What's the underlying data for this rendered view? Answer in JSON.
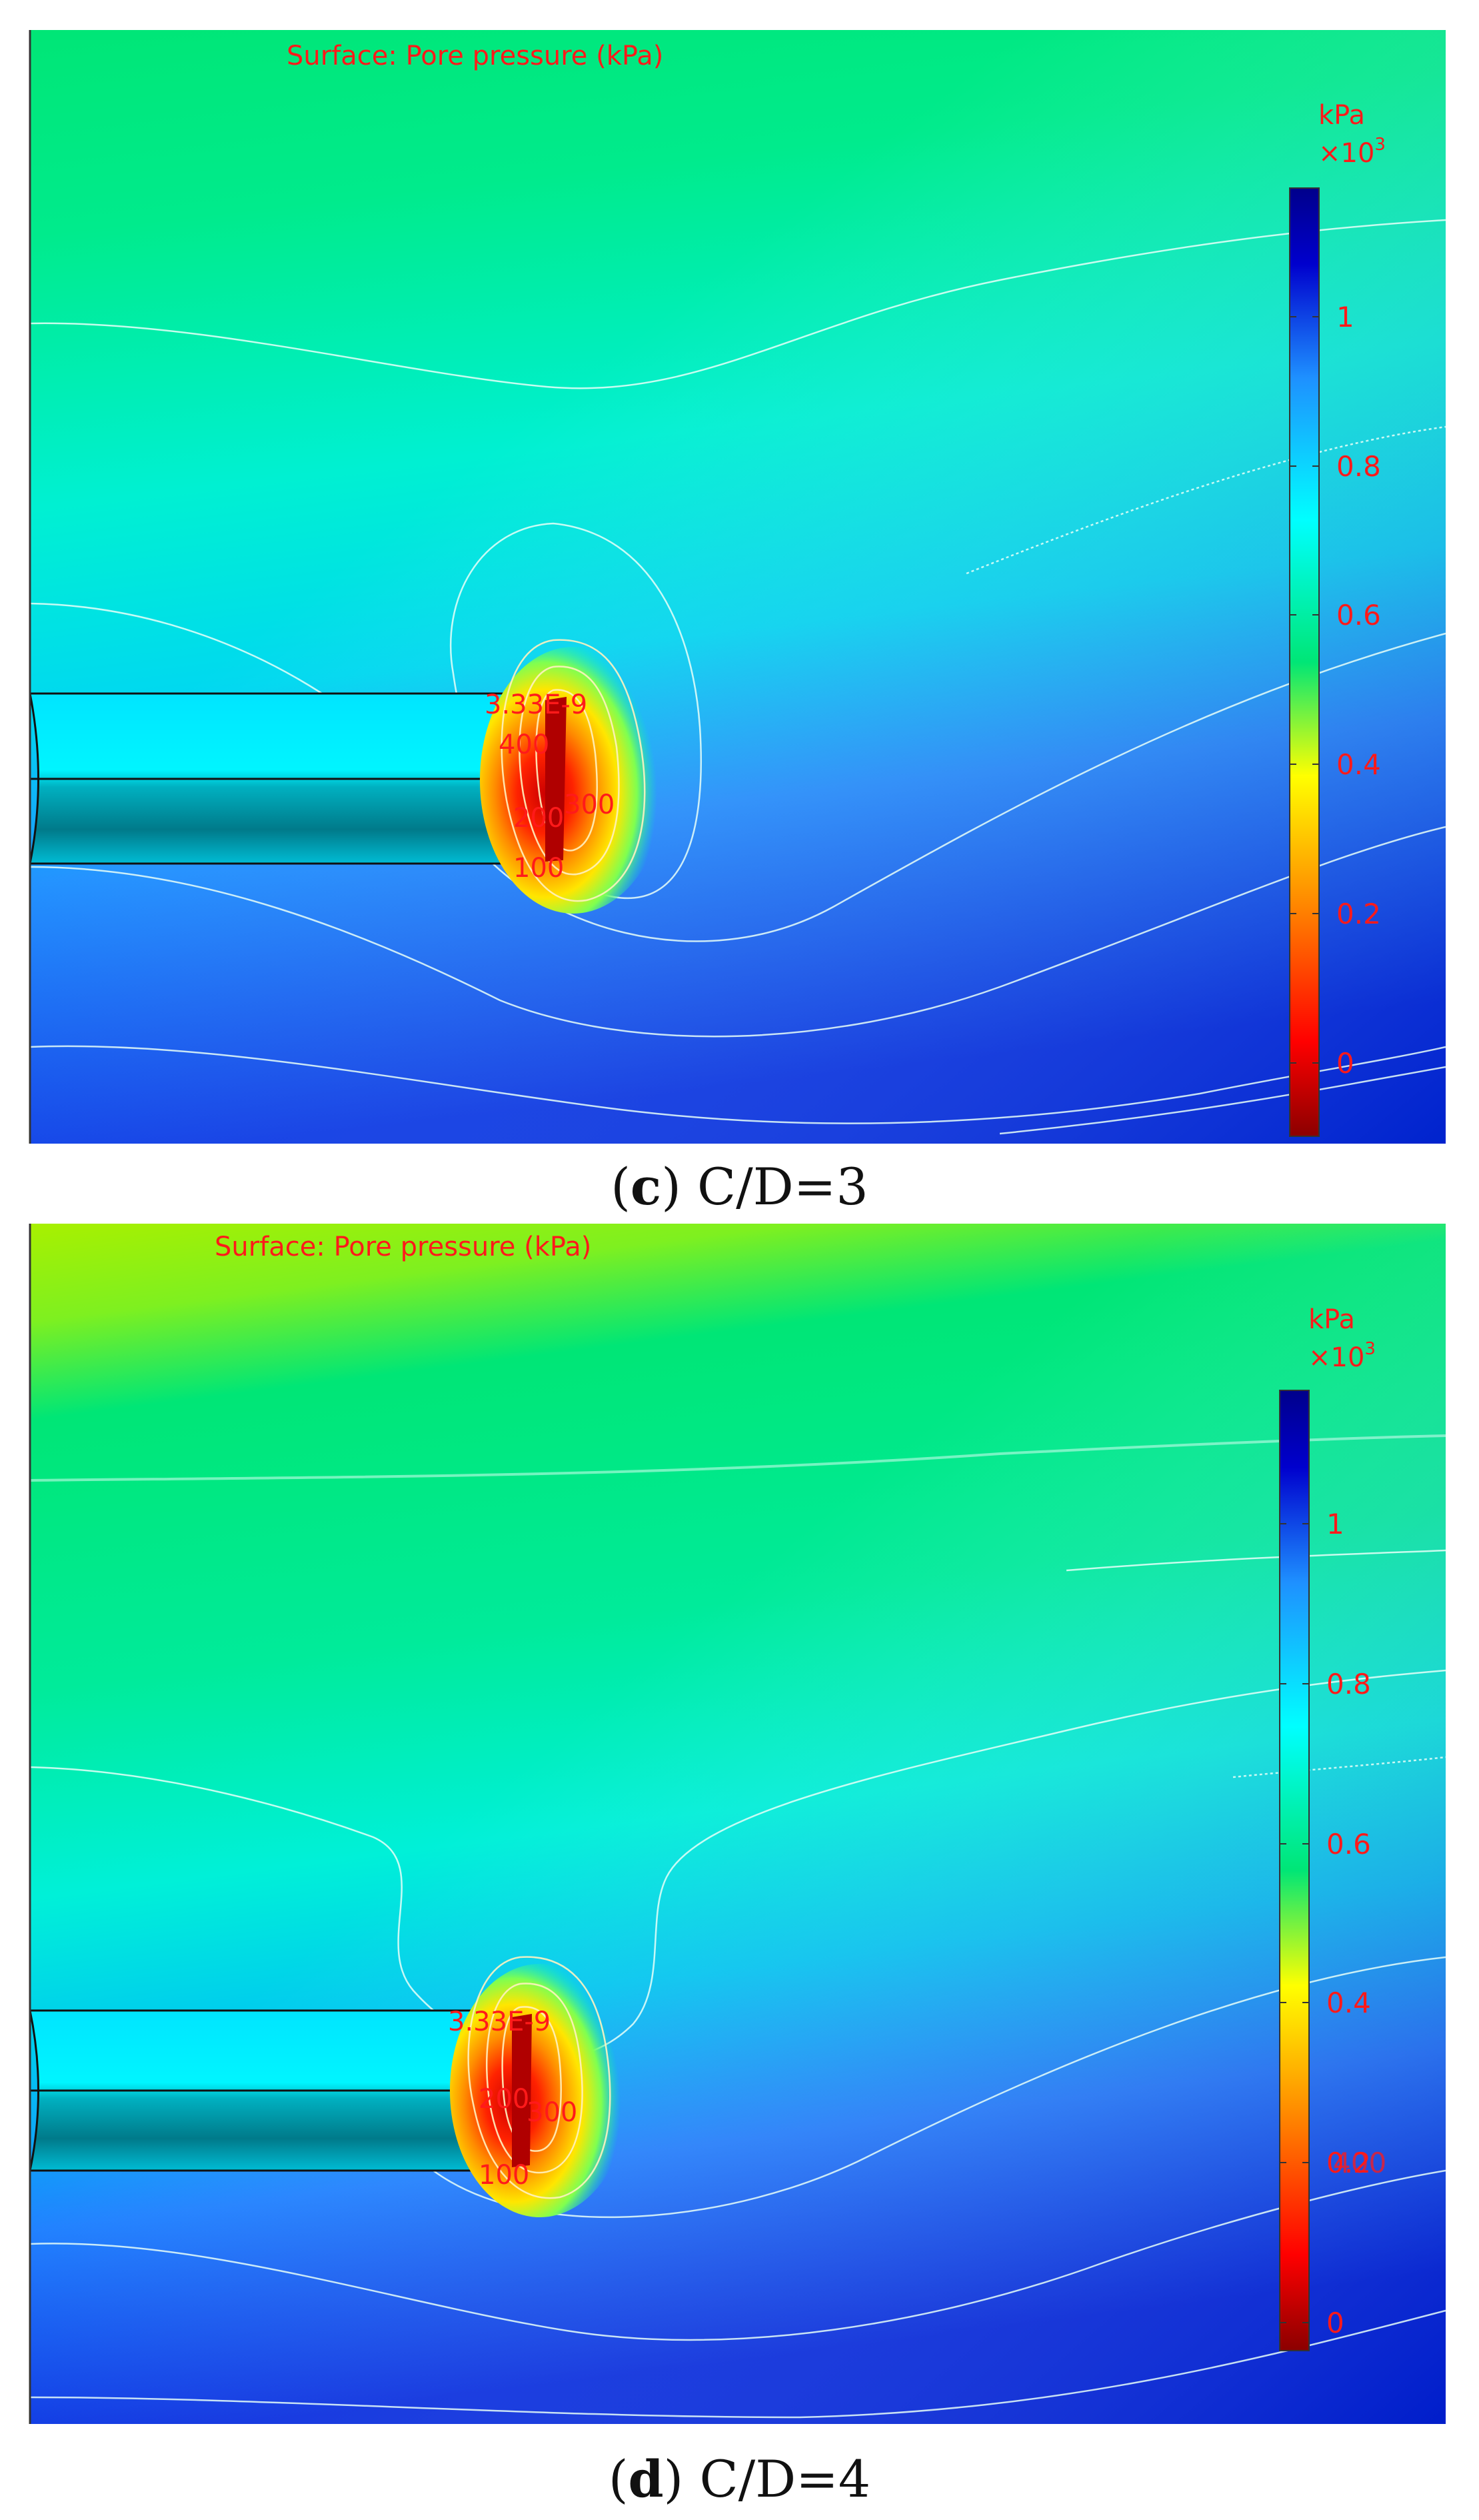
{
  "panels": [
    {
      "id": "c",
      "surface_title": "Surface: Pore pressure (kPa)",
      "colorbar": {
        "unit": "kPa",
        "multiplier": "×10",
        "exponent": "3",
        "ticks": [
          "1",
          "0.8",
          "0.6",
          "0.4",
          "0.2",
          "0"
        ]
      },
      "contour_labels": [
        "3.33E-9",
        "400",
        "200",
        "300",
        "100"
      ],
      "caption_letter": "c",
      "caption_text": "C/D=3"
    },
    {
      "id": "d",
      "surface_title": "Surface: Pore pressure (kPa)",
      "colorbar": {
        "unit": "kPa",
        "multiplier": "×10",
        "exponent": "3",
        "ticks": [
          "1",
          "0.8",
          "0.6",
          "0.4",
          "0.2",
          "0"
        ],
        "overlap_label": "400"
      },
      "contour_labels": [
        "3.33E-9",
        "200",
        "300",
        "100"
      ],
      "caption_letter": "d",
      "caption_text": "C/D=4"
    }
  ],
  "colors": {
    "label_red": "#ff1a1a",
    "colormap": [
      "#8b0000",
      "#ff0000",
      "#ff8c00",
      "#ffff00",
      "#00e676",
      "#00ffff",
      "#1e90ff",
      "#0000cd",
      "#00008b"
    ]
  }
}
